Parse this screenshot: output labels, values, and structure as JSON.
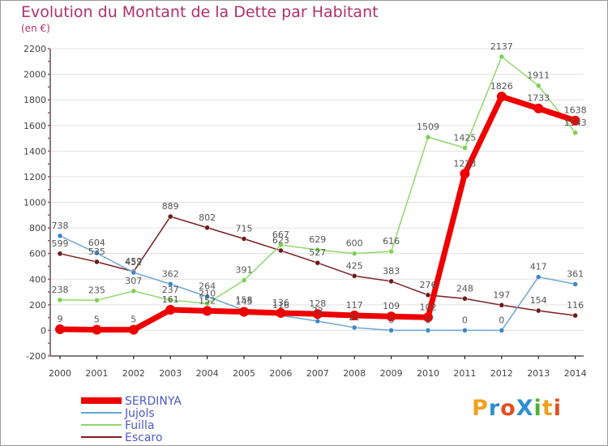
{
  "title": "Evolution du Montant de la Dette par Habitant",
  "unit_label": "(en €)",
  "logo": {
    "text": "ProXiti",
    "letter_colors": [
      "#f0a020",
      "#2f8fd0",
      "#e05020",
      "#2f8fd0",
      "#50b030",
      "#f0a020",
      "#e05020"
    ]
  },
  "colors": {
    "axis_label": "#444444",
    "value_label": "#555555",
    "axis": "#000000",
    "grid": "#e0e0e0",
    "axis_tick_dot": "#c03060"
  },
  "chart_data": {
    "type": "line",
    "xlabel": "",
    "ylabel": "",
    "x": [
      2000,
      2001,
      2002,
      2003,
      2004,
      2005,
      2006,
      2007,
      2008,
      2009,
      2010,
      2011,
      2012,
      2013,
      2014
    ],
    "ylim": [
      -200,
      2200
    ],
    "yticks": [
      -200,
      0,
      200,
      400,
      600,
      800,
      1000,
      1200,
      1400,
      1600,
      1800,
      2000,
      2200
    ],
    "legend_position": "bottom-left",
    "series": [
      {
        "name": "Escaro",
        "color": "#7a1e1e",
        "dot": "#6e1a1a",
        "emphasis": false,
        "values": [
          599,
          535,
          459,
          889,
          802,
          715,
          623,
          527,
          425,
          383,
          276,
          248,
          197,
          154,
          116
        ]
      },
      {
        "name": "Fuilla",
        "color": "#8ed86a",
        "dot": "#7fd050",
        "emphasis": false,
        "values": [
          238,
          235,
          307,
          237,
          210,
          391,
          667,
          629,
          600,
          616,
          1509,
          1425,
          2137,
          1911,
          1543
        ]
      },
      {
        "name": "Jujols",
        "color": "#6aa6d6",
        "dot": "#3d86c8",
        "emphasis": false,
        "values": [
          738,
          604,
          452,
          362,
          264,
          158,
          116,
          72,
          22,
          0,
          0,
          0,
          0,
          417,
          361
        ]
      },
      {
        "name": "SERDINYA",
        "color": "#ee0000",
        "dot": "#ee0000",
        "emphasis": true,
        "values": [
          9,
          5,
          5,
          161,
          152,
          145,
          136,
          128,
          117,
          109,
          102,
          1223,
          1826,
          1733,
          1638
        ]
      }
    ]
  }
}
